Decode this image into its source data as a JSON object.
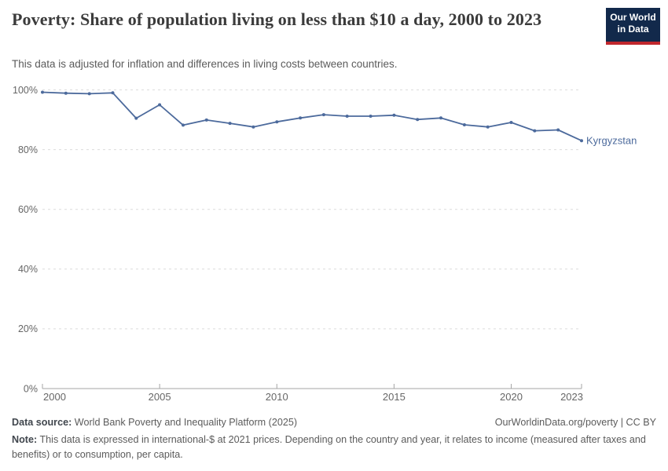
{
  "header": {
    "title": "Poverty: Share of population living on less than $10 a day, 2000 to 2023",
    "subtitle": "This data is adjusted for inflation and differences in living costs between countries.",
    "logo": {
      "line1": "Our World",
      "line2": "in Data"
    }
  },
  "chart_data": {
    "type": "line",
    "title": "Poverty: Share of population living on less than $10 a day, 2000 to 2023",
    "x": [
      2000,
      2001,
      2002,
      2003,
      2004,
      2005,
      2006,
      2007,
      2008,
      2009,
      2010,
      2011,
      2012,
      2013,
      2014,
      2015,
      2016,
      2017,
      2018,
      2019,
      2020,
      2021,
      2022,
      2023
    ],
    "series": [
      {
        "name": "Kyrgyzstan",
        "color": "#4C6A9C",
        "values": [
          99.2,
          98.9,
          98.7,
          99.0,
          90.5,
          95.0,
          88.2,
          89.9,
          88.8,
          87.6,
          89.3,
          90.6,
          91.7,
          91.2,
          91.2,
          91.5,
          90.1,
          90.6,
          88.3,
          87.6,
          89.1,
          86.3,
          86.6,
          83.0
        ]
      }
    ],
    "xlabel": "",
    "ylabel": "",
    "ylim": [
      0,
      100
    ],
    "y_ticks": [
      0,
      20,
      40,
      60,
      80,
      100
    ],
    "y_tick_suffix": "%",
    "x_ticks": [
      2000,
      2005,
      2010,
      2015,
      2020,
      2023
    ],
    "grid": "horizontal-dashed",
    "legend": "line-end-label"
  },
  "footer": {
    "source_label": "Data source:",
    "source_text": "World Bank Poverty and Inequality Platform (2025)",
    "attribution": "OurWorldinData.org/poverty | CC BY",
    "note_label": "Note:",
    "note_text": "This data is expressed in international-$ at 2021 prices. Depending on the country and year, it relates to income (measured after taxes and benefits) or to consumption, per capita."
  },
  "colors": {
    "line": "#4C6A9C",
    "logo_bg": "#12294B",
    "logo_stripe": "#C0272D",
    "grid": "#DCDCDC",
    "axis": "#A5A5A5",
    "tick_label": "#666666",
    "title_text": "#3B3B3B",
    "subtitle_text": "#5B5B5B"
  }
}
